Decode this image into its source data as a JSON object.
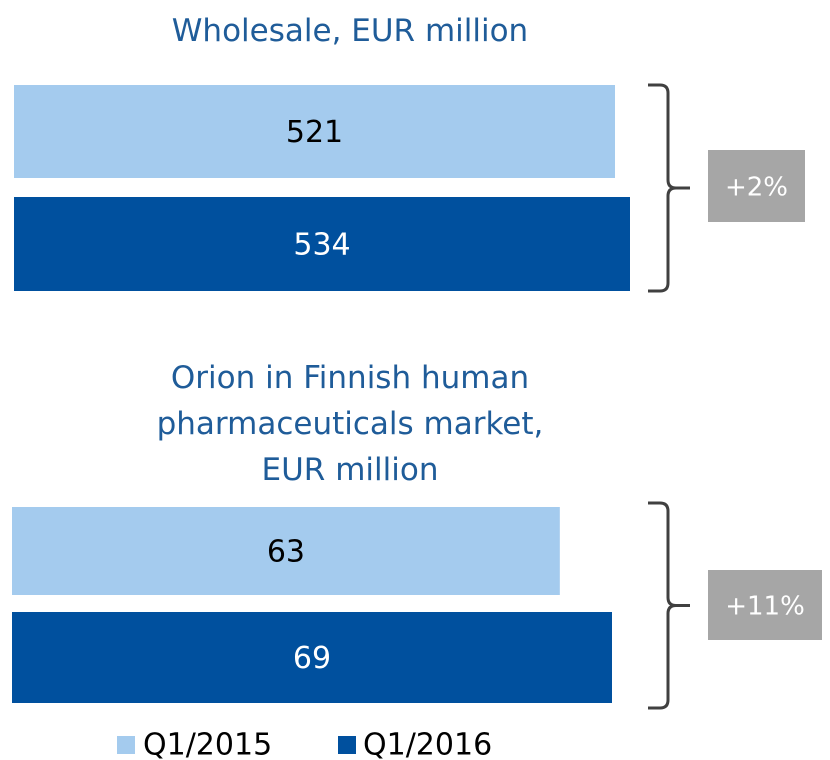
{
  "chart_data": [
    {
      "type": "bar",
      "orientation": "horizontal",
      "title": "Wholesale, EUR million",
      "series": [
        {
          "name": "Q1/2015",
          "color": "#a4cbee",
          "values": [
            521
          ]
        },
        {
          "name": "Q1/2016",
          "color": "#00509e",
          "values": [
            534
          ]
        }
      ],
      "annotation": "+2%"
    },
    {
      "type": "bar",
      "orientation": "horizontal",
      "title": "Orion in Finnish human\npharmaceuticals market,\nEUR million",
      "series": [
        {
          "name": "Q1/2015",
          "color": "#a4cbee",
          "values": [
            63
          ]
        },
        {
          "name": "Q1/2016",
          "color": "#00509e",
          "values": [
            69
          ]
        }
      ],
      "annotation": "+11%"
    }
  ]
}
